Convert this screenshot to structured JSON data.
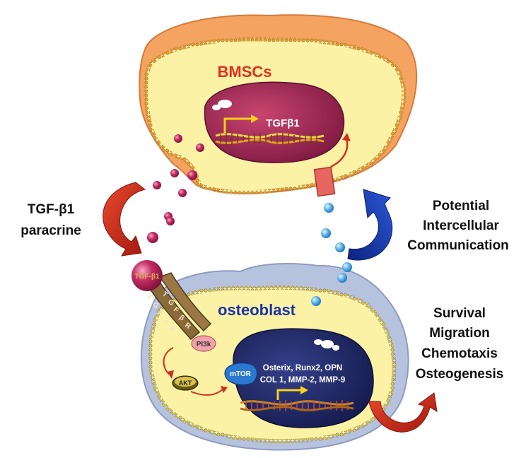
{
  "cells": {
    "upper_label": "BMSCs",
    "lower_label": "osteoblast"
  },
  "nuclei": {
    "upper_gene": "TGFβ1",
    "lower_genes_line1": "Osterix, Runx2, OPN",
    "lower_genes_line2": "COL 1, MMP-2, MMP-9"
  },
  "signaling": {
    "ligand": "TGF-β1",
    "receptor_letters": [
      "T",
      "G",
      "F",
      "β",
      "R"
    ],
    "pi3k": "PI3k",
    "akt": "AKT",
    "mtor": "mTOR"
  },
  "side_labels": {
    "paracrine_line1": "TGF-β1",
    "paracrine_line2": "paracrine",
    "communication_line1": "Potential",
    "communication_line2": "Intercellular",
    "communication_line3": "Communication",
    "effects": [
      "Survival",
      "Migration",
      "Chemotaxis",
      "Osteogenesis"
    ]
  },
  "colors": {
    "cytoplasm": "#fbf2a6",
    "upper_membrane": "#f5a360",
    "lower_membrane": "#b7c3de",
    "upper_nucleus": "#a52a5a",
    "lower_nucleus": "#232b6b",
    "label_red": "#e0301e",
    "label_blue": "#1a35a8",
    "arrow_red": "#c8281a",
    "arrow_blue": "#1537b0"
  }
}
